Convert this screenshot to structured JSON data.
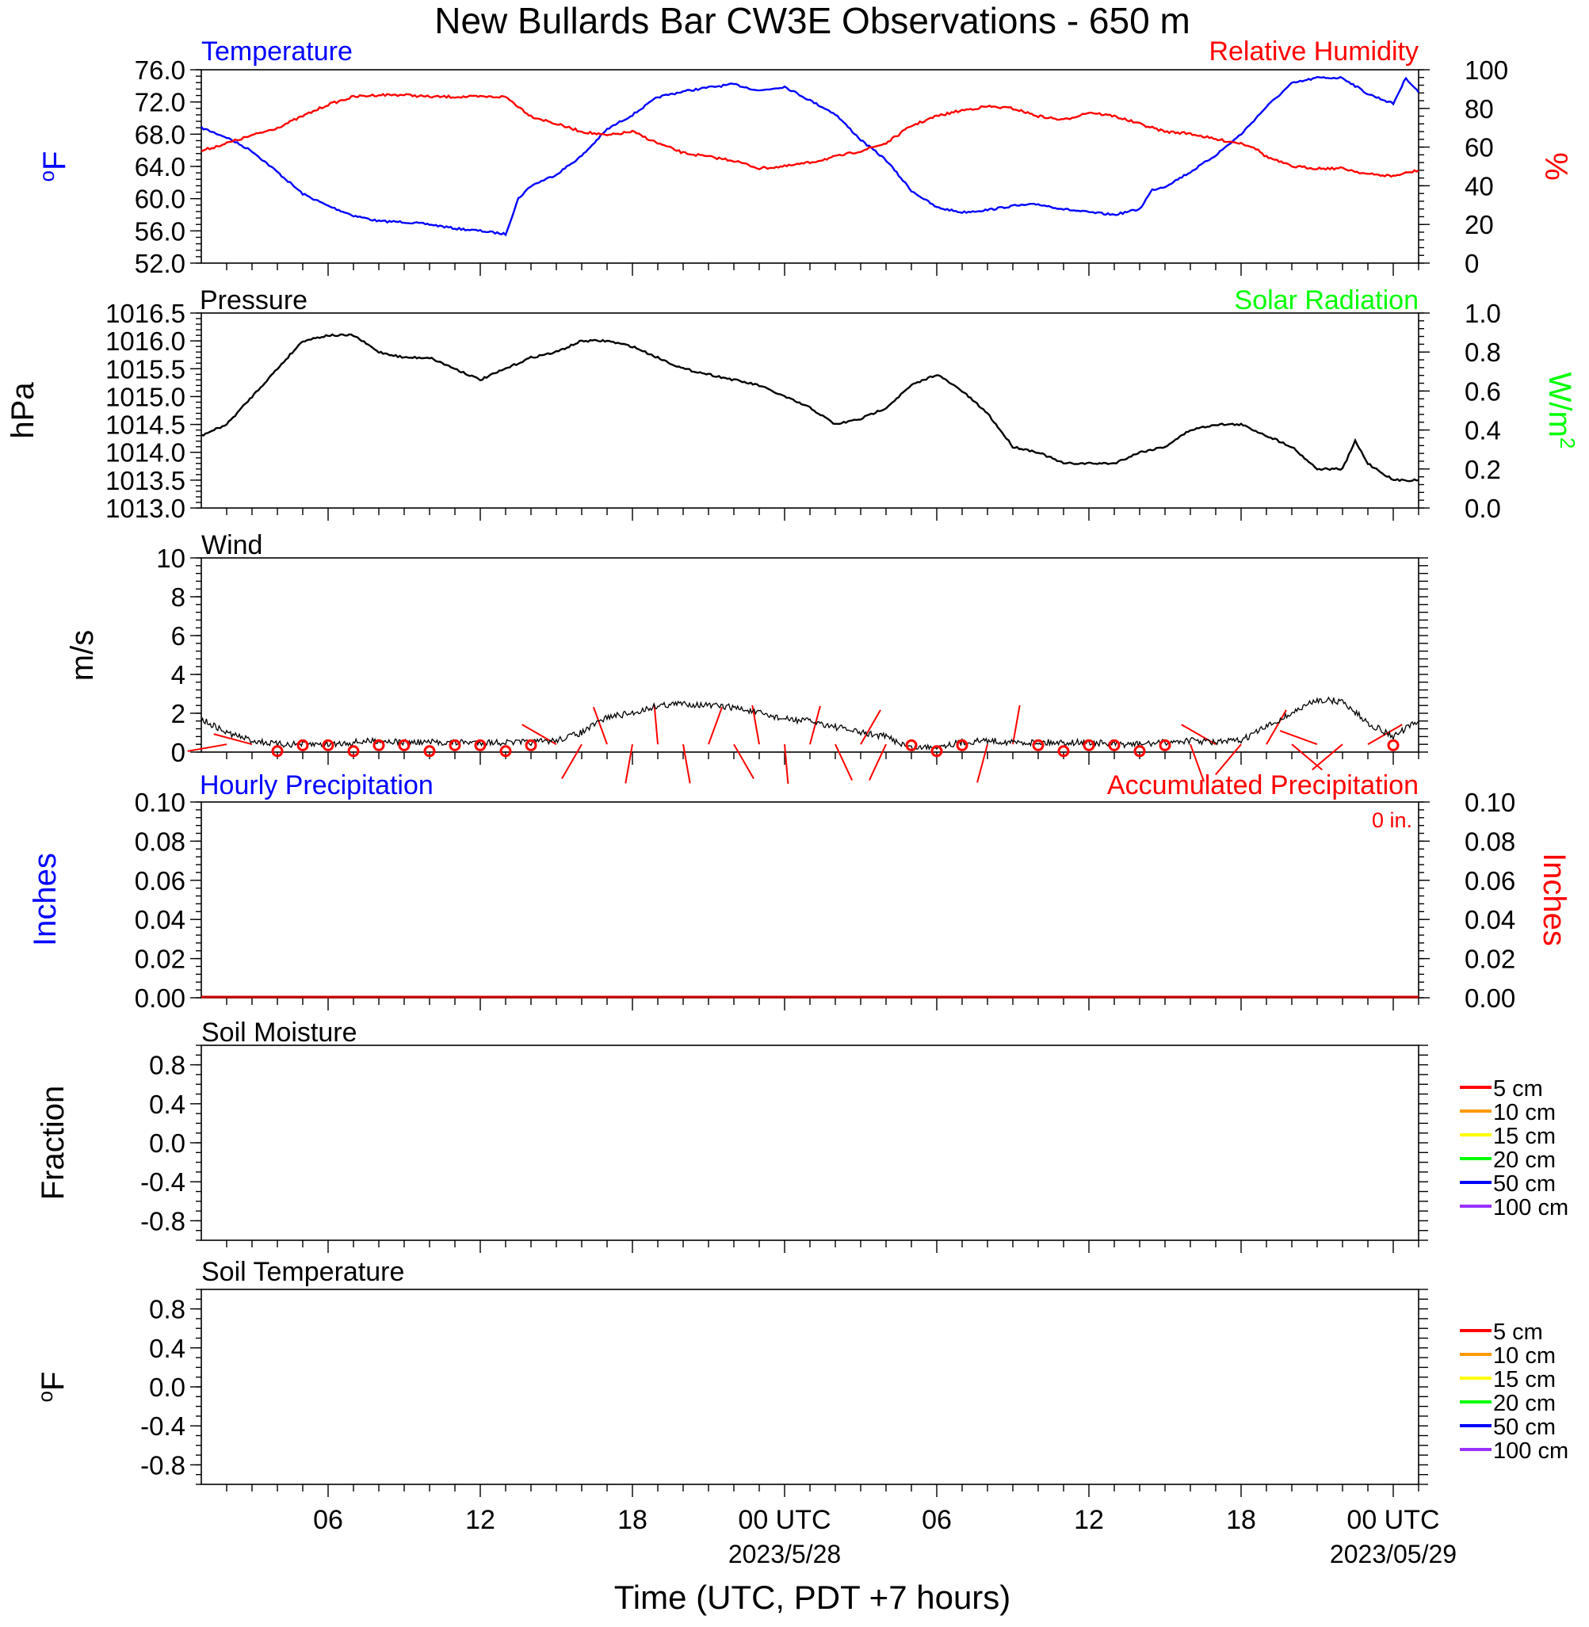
{
  "title": "New Bullards Bar CW3E Observations - 650 m",
  "xaxis": {
    "label": "Time (UTC, PDT +7 hours)",
    "ticks": [
      {
        "h": 6,
        "label": "06"
      },
      {
        "h": 12,
        "label": "12"
      },
      {
        "h": 18,
        "label": "18"
      },
      {
        "h": 24,
        "label": "00 UTC",
        "sub": "2023/5/28"
      },
      {
        "h": 30,
        "label": "06"
      },
      {
        "h": 36,
        "label": "12"
      },
      {
        "h": 42,
        "label": "18"
      },
      {
        "h": 48,
        "label": "00 UTC",
        "sub": "2023/05/29"
      }
    ],
    "range_hours": [
      1,
      49
    ]
  },
  "panels": [
    {
      "id": "temp-rh",
      "left_title": "Temperature",
      "left_title_color": "#0000ff",
      "right_title": "Relative Humidity",
      "right_title_color": "#ff0000",
      "left_unit": "oF",
      "left_unit_color": "#0000ff",
      "right_unit": "%",
      "right_unit_color": "#ff0000",
      "left_ticks": [
        "52.0",
        "56.0",
        "60.0",
        "64.0",
        "68.0",
        "72.0",
        "76.0"
      ],
      "right_ticks": [
        "0",
        "20",
        "40",
        "60",
        "80",
        "100"
      ]
    },
    {
      "id": "pressure",
      "left_title": "Pressure",
      "left_title_color": "#000000",
      "right_title": "Solar Radiation",
      "right_title_color": "#00ff00",
      "left_unit": "hPa",
      "left_unit_color": "#000000",
      "right_unit": "W/m2",
      "right_unit_color": "#00ff00",
      "left_ticks": [
        "1013.0",
        "1013.5",
        "1014.0",
        "1014.5",
        "1015.0",
        "1015.5",
        "1016.0",
        "1016.5"
      ],
      "right_ticks": [
        "0.0",
        "0.2",
        "0.4",
        "0.6",
        "0.8",
        "1.0"
      ]
    },
    {
      "id": "wind",
      "left_title": "Wind",
      "left_title_color": "#000000",
      "left_unit": "m/s",
      "left_unit_color": "#000000",
      "left_ticks": [
        "0",
        "2",
        "4",
        "6",
        "8",
        "10"
      ]
    },
    {
      "id": "precip",
      "left_title": "Hourly Precipitation",
      "left_title_color": "#0000ff",
      "right_title": "Accumulated Precipitation",
      "right_title_color": "#ff0000",
      "annotation": "0 in.",
      "left_unit": "Inches",
      "left_unit_color": "#0000ff",
      "right_unit": "Inches",
      "right_unit_color": "#ff0000",
      "left_ticks": [
        "0.00",
        "0.02",
        "0.04",
        "0.06",
        "0.08",
        "0.10"
      ],
      "right_ticks": [
        "0.00",
        "0.02",
        "0.04",
        "0.06",
        "0.08",
        "0.10"
      ]
    },
    {
      "id": "soil-moisture",
      "left_title": "Soil Moisture",
      "left_title_color": "#000000",
      "left_unit": "Fraction",
      "left_unit_color": "#000000",
      "left_ticks": [
        "-0.8",
        "-0.4",
        "0.0",
        "0.4",
        "0.8"
      ]
    },
    {
      "id": "soil-temp",
      "left_title": "Soil Temperature",
      "left_title_color": "#000000",
      "left_unit": "oF",
      "left_unit_color": "#000000",
      "left_ticks": [
        "-0.8",
        "-0.4",
        "0.0",
        "0.4",
        "0.8"
      ]
    }
  ],
  "soil_legend": [
    {
      "label": "5 cm",
      "color": "#ff0000"
    },
    {
      "label": "10 cm",
      "color": "#ff9900"
    },
    {
      "label": "15 cm",
      "color": "#ffff00"
    },
    {
      "label": "20 cm",
      "color": "#00ff00"
    },
    {
      "label": "50 cm",
      "color": "#0000ff"
    },
    {
      "label": "100 cm",
      "color": "#9933ff"
    }
  ],
  "chart_data": [
    {
      "type": "line",
      "title": "Temperature / Relative Humidity",
      "x_unit": "hours UTC since 2023-05-27 00:00",
      "xlim": [
        1,
        49
      ],
      "series": [
        {
          "name": "Temperature",
          "color": "#0000ff",
          "axis": "left",
          "ylim": [
            52,
            76
          ],
          "x": [
            1,
            2,
            3,
            4,
            5,
            6,
            7,
            8,
            9,
            10,
            11,
            12,
            13,
            13.5,
            14,
            15,
            16,
            17,
            18,
            19,
            20,
            21,
            22,
            23,
            24,
            25,
            26,
            27,
            28,
            29,
            30,
            31,
            32,
            33,
            34,
            35,
            36,
            37,
            38,
            38.5,
            39,
            40,
            41,
            42,
            43,
            44,
            45,
            46,
            47,
            48,
            48.5,
            49
          ],
          "y": [
            68.8,
            67.6,
            65.9,
            63.3,
            60.6,
            59.1,
            57.9,
            57.2,
            57.1,
            56.8,
            56.3,
            56.0,
            55.6,
            60.0,
            61.6,
            63.0,
            65.3,
            68.6,
            70.4,
            72.6,
            73.3,
            73.8,
            74.2,
            73.4,
            73.9,
            72.2,
            70.5,
            67.3,
            64.8,
            61.0,
            58.9,
            58.3,
            58.6,
            59.1,
            59.3,
            58.7,
            58.3,
            58.0,
            58.7,
            61.1,
            61.5,
            63.3,
            65.4,
            68.0,
            71.4,
            74.3,
            75.0,
            75.0,
            73.0,
            71.8,
            75.0,
            73.2
          ]
        },
        {
          "name": "Relative Humidity",
          "color": "#ff0000",
          "axis": "right",
          "ylim": [
            0,
            100
          ],
          "x": [
            1,
            2,
            3,
            4,
            5,
            6,
            7,
            8,
            9,
            10,
            11,
            12,
            13,
            14,
            15,
            16,
            17,
            18,
            19,
            20,
            21,
            22,
            23,
            24,
            25,
            26,
            27,
            28,
            29,
            30,
            31,
            32,
            33,
            34,
            35,
            36,
            37,
            38,
            39,
            40,
            41,
            42,
            42.5,
            43,
            44,
            45,
            46,
            47,
            48,
            49
          ],
          "y": [
            58,
            62,
            66,
            70,
            76,
            82,
            86,
            87,
            87,
            86,
            86,
            86,
            86,
            76,
            72,
            68,
            66,
            68,
            62,
            57,
            55,
            53,
            49,
            50,
            52,
            55,
            58,
            62,
            71,
            76,
            79,
            81,
            80,
            76,
            74,
            78,
            76,
            72,
            68,
            67,
            64,
            62,
            60,
            55,
            50,
            49,
            49,
            46,
            45,
            48
          ]
        }
      ]
    },
    {
      "type": "line",
      "title": "Pressure",
      "ylabel": "hPa",
      "ylim": [
        1013.0,
        1016.5
      ],
      "series": [
        {
          "name": "Pressure",
          "color": "#000000",
          "x": [
            1,
            2,
            3,
            4,
            5,
            6,
            7,
            8,
            9,
            10,
            11,
            12,
            13,
            14,
            15,
            16,
            17,
            18,
            19,
            20,
            21,
            22,
            23,
            24,
            25,
            26,
            27,
            28,
            29,
            30,
            31,
            32,
            33,
            34,
            35,
            36,
            37,
            38,
            39,
            40,
            41,
            42,
            43,
            44,
            45,
            46,
            46.5,
            47,
            48,
            49
          ],
          "y": [
            1014.3,
            1014.5,
            1015.0,
            1015.5,
            1016.0,
            1016.1,
            1016.1,
            1015.8,
            1015.7,
            1015.7,
            1015.5,
            1015.3,
            1015.5,
            1015.7,
            1015.8,
            1016.0,
            1016.0,
            1015.9,
            1015.7,
            1015.5,
            1015.4,
            1015.3,
            1015.2,
            1015.0,
            1014.8,
            1014.5,
            1014.6,
            1014.8,
            1015.2,
            1015.4,
            1015.1,
            1014.7,
            1014.1,
            1014.0,
            1013.8,
            1013.8,
            1013.8,
            1014.0,
            1014.1,
            1014.4,
            1014.5,
            1014.5,
            1014.3,
            1014.1,
            1013.7,
            1013.7,
            1014.2,
            1013.8,
            1013.5,
            1013.5
          ]
        },
        {
          "name": "Solar Radiation",
          "color": "#00ff00",
          "axis": "right",
          "ylim": [
            0,
            1.0
          ],
          "values": []
        }
      ]
    },
    {
      "type": "line",
      "title": "Wind",
      "ylabel": "m/s",
      "ylim": [
        0,
        10
      ],
      "series": [
        {
          "name": "Wind speed",
          "color": "#000000",
          "x": [
            1,
            2,
            3,
            4,
            5,
            6,
            7,
            8,
            9,
            10,
            11,
            12,
            13,
            14,
            15,
            16,
            17,
            18,
            19,
            20,
            21,
            22,
            23,
            24,
            25,
            26,
            27,
            28,
            29,
            30,
            31,
            32,
            33,
            34,
            35,
            36,
            37,
            38,
            39,
            40,
            41,
            42,
            43,
            44,
            45,
            46,
            47,
            48,
            49
          ],
          "y": [
            1.7,
            1.0,
            0.6,
            0.4,
            0.4,
            0.4,
            0.5,
            0.6,
            0.5,
            0.5,
            0.5,
            0.5,
            0.5,
            0.5,
            0.6,
            1.0,
            1.8,
            2.0,
            2.4,
            2.5,
            2.4,
            2.3,
            2.0,
            1.7,
            1.6,
            1.3,
            1.0,
            0.8,
            0.2,
            0.3,
            0.5,
            0.6,
            0.5,
            0.5,
            0.5,
            0.5,
            0.4,
            0.4,
            0.5,
            0.6,
            0.5,
            0.6,
            1.3,
            2.0,
            2.7,
            2.6,
            1.5,
            0.8,
            1.6
          ]
        }
      ],
      "calm_marker_hours": [
        4,
        5,
        6,
        7,
        8,
        9,
        10,
        11,
        12,
        13,
        14,
        29,
        30,
        31,
        34,
        35,
        36,
        37,
        38,
        39,
        48
      ]
    },
    {
      "type": "line",
      "title": "Hourly Precipitation / Accumulated Precipitation",
      "ylim": [
        0,
        0.1
      ],
      "series": [
        {
          "name": "Hourly Precipitation",
          "color": "#0000ff",
          "x": [
            1,
            49
          ],
          "y": [
            0,
            0
          ]
        },
        {
          "name": "Accumulated Precipitation",
          "color": "#ff0000",
          "x": [
            1,
            49
          ],
          "y": [
            0,
            0
          ]
        }
      ]
    },
    {
      "type": "line",
      "title": "Soil Moisture",
      "ylabel": "Fraction",
      "ylim": [
        -1,
        1
      ],
      "series": []
    },
    {
      "type": "line",
      "title": "Soil Temperature",
      "ylabel": "oF",
      "ylim": [
        -1,
        1
      ],
      "series": []
    }
  ]
}
